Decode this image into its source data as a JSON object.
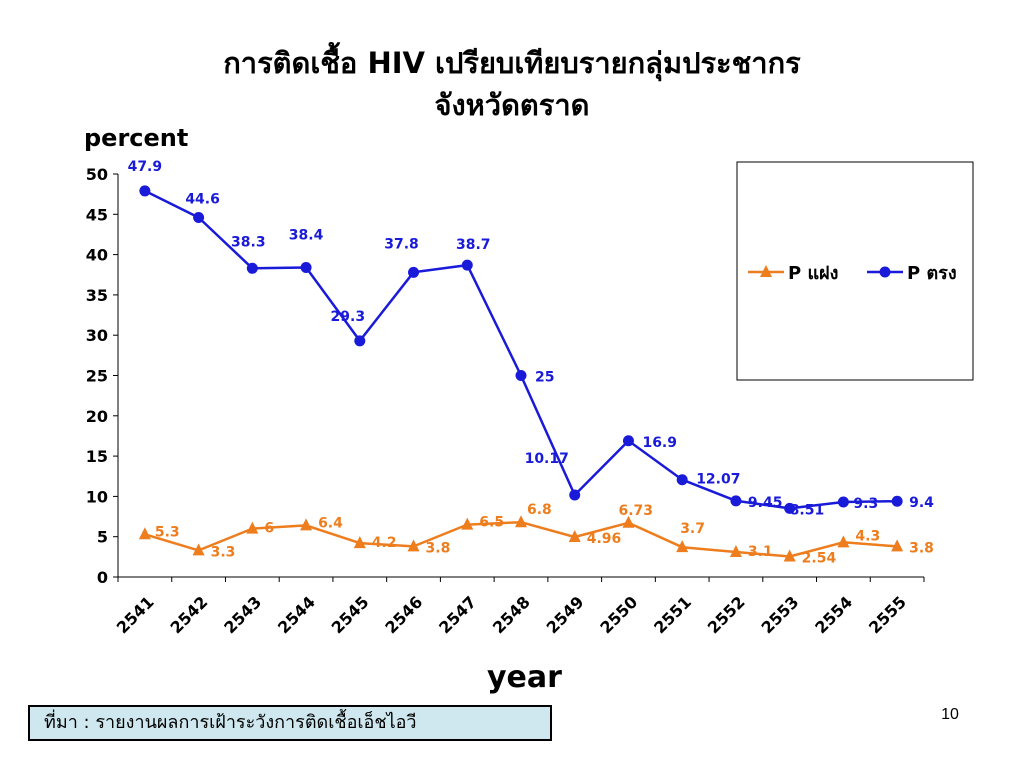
{
  "slide": {
    "title_line_1": "การติดเชื้อ HIV เปรียบเทียบรายกลุ่มประชากร",
    "title_line_2": "จังหวัดตราด",
    "source_note": "ที่มา : รายงานผลการเฝ้าระวังการติดเชื้อเอ็ชไอวี",
    "page_number": "10"
  },
  "colors": {
    "series_orange": "#ee7d1e",
    "series_blue": "#1a1ad9",
    "axis": "#000000"
  },
  "chart_data": {
    "type": "line",
    "title": "การติดเชื้อ HIV เปรียบเทียบรายกลุ่มประชากร จังหวัดตราด",
    "xlabel": "year",
    "ylabel": "percent",
    "ylim": [
      0,
      50
    ],
    "yticks": [
      0,
      5,
      10,
      15,
      20,
      25,
      30,
      35,
      40,
      45,
      50
    ],
    "grid": false,
    "legend_position": "right",
    "categories": [
      "2541",
      "2542",
      "2543",
      "2544",
      "2545",
      "2546",
      "2547",
      "2548",
      "2549",
      "2550",
      "2551",
      "2552",
      "2553",
      "2554",
      "2555"
    ],
    "series": [
      {
        "name": "P แฝง",
        "marker": "triangle",
        "color": "#ee7d1e",
        "values": [
          5.3,
          3.3,
          6,
          6.4,
          4.2,
          3.8,
          6.5,
          6.8,
          4.96,
          6.73,
          3.7,
          3.1,
          2.54,
          4.3,
          3.8
        ],
        "labels": [
          "5.3",
          "3.3",
          "6",
          "6.4",
          "4.2",
          "3.8",
          "6.5",
          "6.8",
          "4.96",
          "6.73",
          "3.7",
          "3.1",
          "2.54",
          "4.3",
          "3.8"
        ]
      },
      {
        "name": "P ตรง",
        "marker": "circle",
        "color": "#1a1ad9",
        "values": [
          47.9,
          44.6,
          38.3,
          38.4,
          29.3,
          37.8,
          38.7,
          25,
          10.17,
          16.9,
          12.07,
          9.45,
          8.51,
          9.3,
          9.4
        ],
        "labels": [
          "47.9",
          "44.6",
          "38.3",
          "38.4",
          "29.3",
          "37.8",
          "38.7",
          "25",
          "10.17",
          "16.9",
          "12.07",
          "9.45",
          "8.51",
          "9.3",
          "9.4"
        ]
      }
    ]
  }
}
